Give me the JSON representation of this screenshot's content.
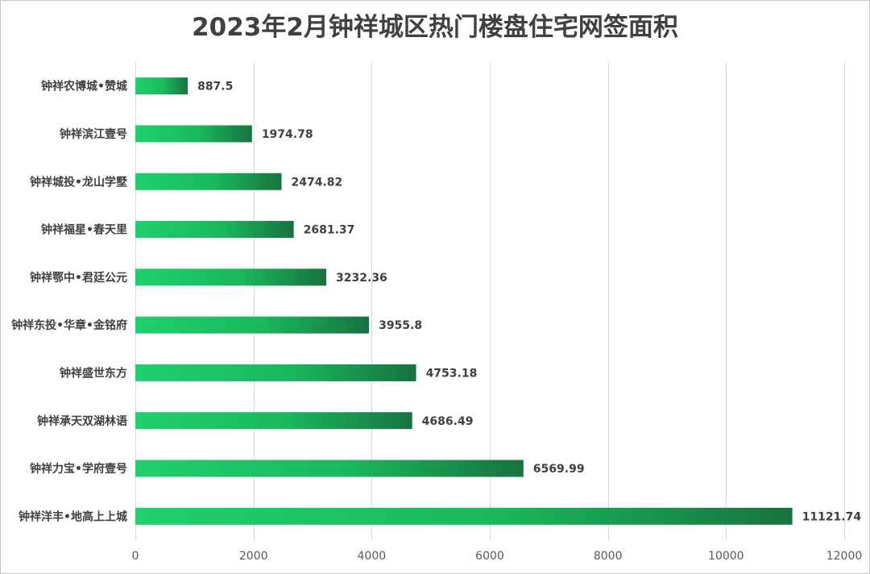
{
  "chart_data": {
    "type": "bar",
    "orientation": "horizontal",
    "title": "2023年2月钟祥城区热门楼盘住宅网签面积",
    "xlabel": "",
    "ylabel": "",
    "categories": [
      "钟祥农博城•赞城",
      "钟祥滨江壹号",
      "钟祥城投•龙山学墅",
      "钟祥福星•春天里",
      "钟祥鄂中•君廷公元",
      "钟祥东投•华章•金铭府",
      "钟祥盛世东方",
      "钟祥承天双湖林语",
      "钟祥力宝•学府壹号",
      "钟祥洋丰•地高上上城"
    ],
    "values": [
      887.5,
      1974.78,
      2474.82,
      2681.37,
      3232.36,
      3955.8,
      4753.18,
      4686.49,
      6569.99,
      11121.74
    ],
    "value_labels": [
      "887.5",
      "1974.78",
      "2474.82",
      "2681.37",
      "3232.36",
      "3955.8",
      "4753.18",
      "4686.49",
      "6569.99",
      "11121.74"
    ],
    "xlim": [
      0,
      12000
    ],
    "xticks": [
      0,
      2000,
      4000,
      6000,
      8000,
      10000,
      12000
    ],
    "grid": "vertical",
    "legend": "none"
  },
  "colors": {
    "bar_start": "#1fd06d",
    "bar_mid": "#19b85c",
    "bar_end": "#17733f",
    "grid": "#d9d9d9",
    "text": "#404040"
  }
}
